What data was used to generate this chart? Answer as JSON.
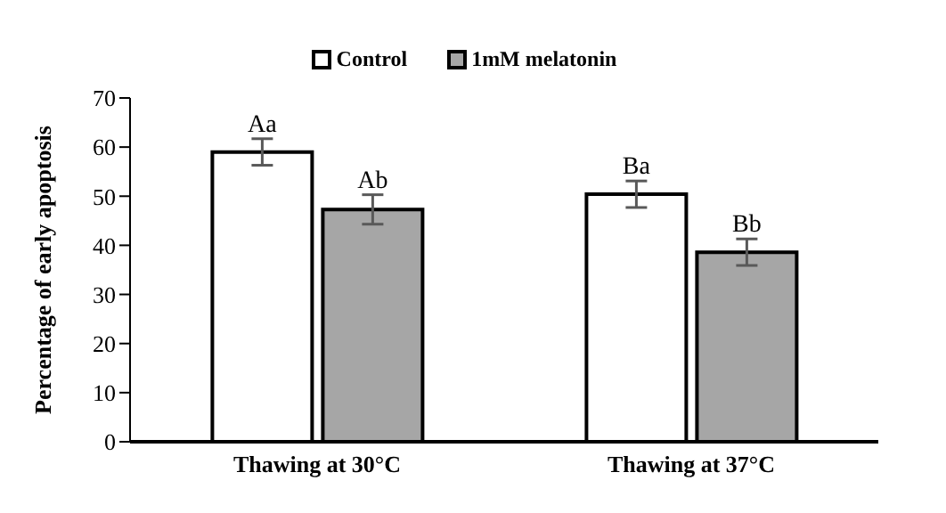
{
  "chart_data": {
    "type": "bar",
    "categories": [
      "Thawing at 30°C",
      "Thawing at 37°C"
    ],
    "ylabel": "Percentage of early apoptosis",
    "series": [
      {
        "name": "Control",
        "color": "#ffffff",
        "values": [
          59.0,
          50.4
        ],
        "errors": [
          2.7,
          2.7
        ]
      },
      {
        "name": "1mM melatonin",
        "color": "#a6a6a6",
        "values": [
          47.3,
          38.6
        ],
        "errors": [
          3.0,
          2.7
        ]
      }
    ],
    "ylim": [
      0,
      70
    ],
    "yticks": [
      0,
      10,
      20,
      30,
      40,
      50,
      60,
      70
    ],
    "grid": false,
    "legend": "top",
    "annotations": [
      {
        "text": "Aa",
        "x": "Thawing at 30°C",
        "y": 59.0
      },
      {
        "text": "Ab",
        "x": "Thawing at 30°C",
        "y": 47.3
      },
      {
        "text": "Ba",
        "x": "Thawing at 37°C",
        "y": 50.4
      },
      {
        "text": "Bb",
        "x": "Thawing at 37°C",
        "y": 38.6
      }
    ]
  }
}
